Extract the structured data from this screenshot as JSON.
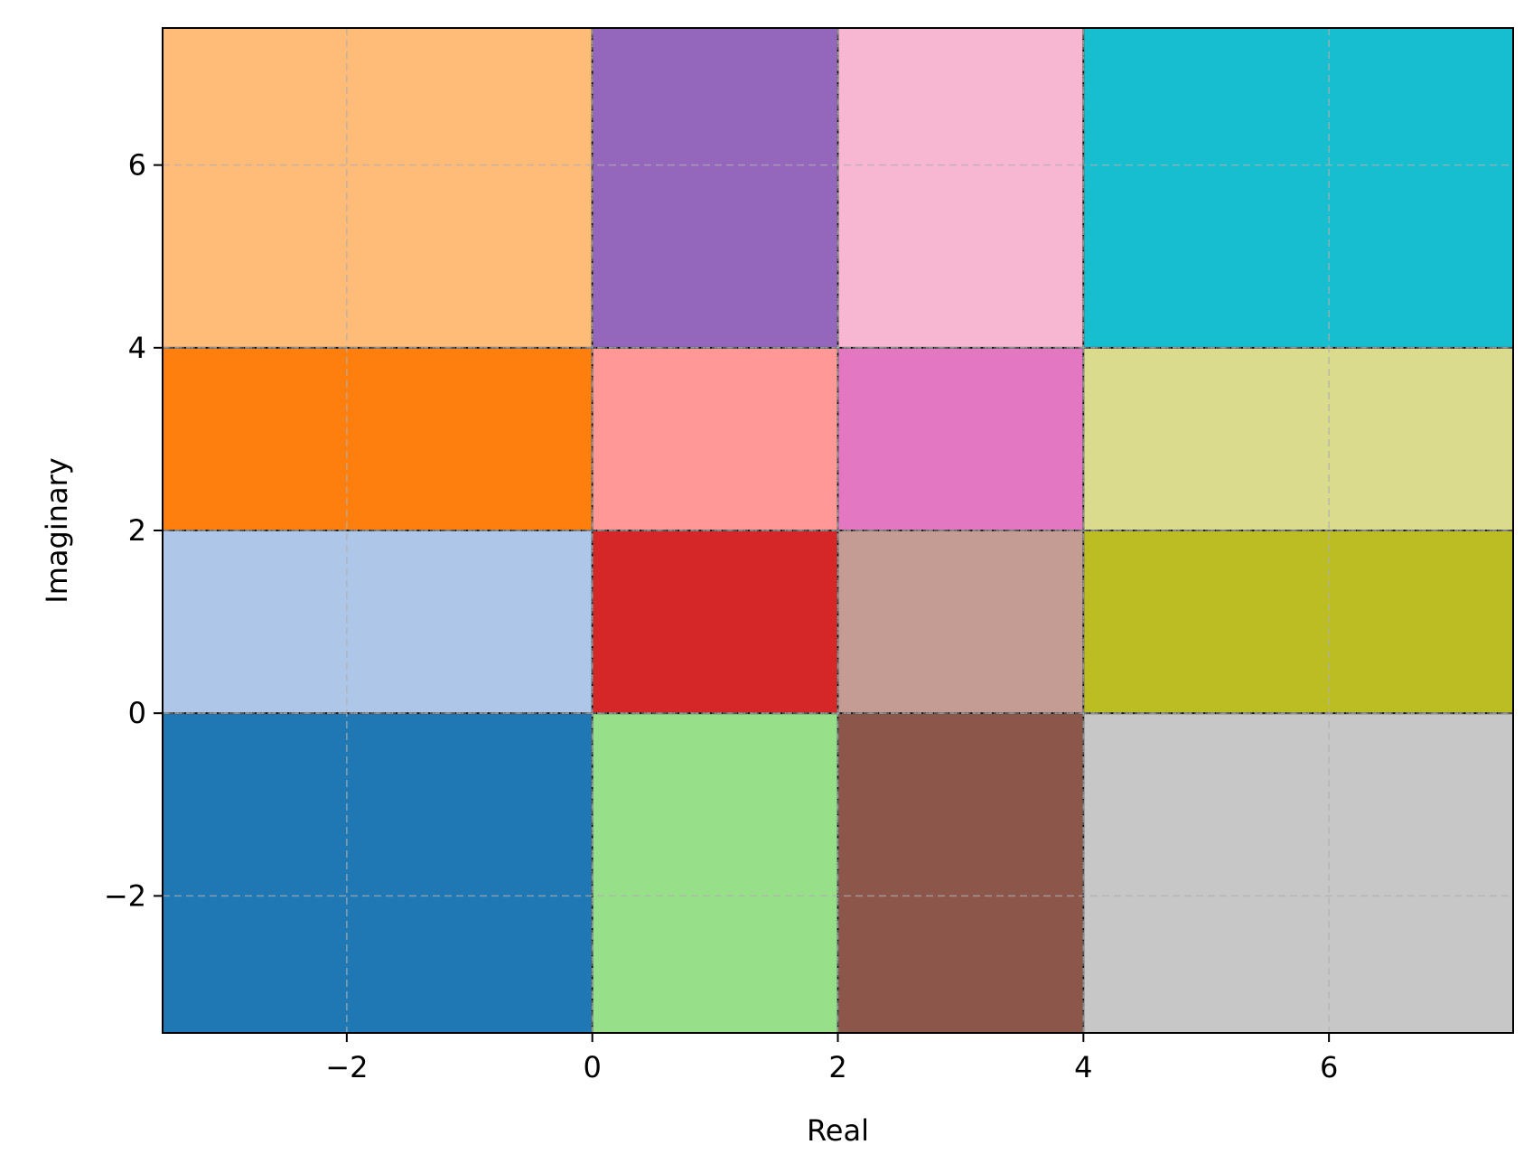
{
  "chart_data": {
    "type": "heatmap",
    "title": "",
    "xlabel": "Real",
    "ylabel": "Imaginary",
    "xlim": [
      -3.5,
      7.5
    ],
    "ylim": [
      -3.5,
      7.5
    ],
    "x_edges": [
      -3.5,
      0,
      2,
      4,
      7.5
    ],
    "y_edges": [
      -3.5,
      0,
      2,
      4,
      7.5
    ],
    "x_ticks": [
      -2,
      0,
      2,
      4,
      6
    ],
    "y_ticks": [
      -2,
      0,
      2,
      4,
      6
    ],
    "x_tick_labels": [
      "−2",
      "0",
      "2",
      "4",
      "6"
    ],
    "y_tick_labels": [
      "−2",
      "0",
      "2",
      "4",
      "6"
    ],
    "grid": true,
    "cells": [
      {
        "col": 0,
        "row": 0,
        "color": "#1f77b4"
      },
      {
        "col": 0,
        "row": 1,
        "color": "#aec7e8"
      },
      {
        "col": 0,
        "row": 2,
        "color": "#ff7f0e"
      },
      {
        "col": 0,
        "row": 3,
        "color": "#ffbb78"
      },
      {
        "col": 1,
        "row": 0,
        "color": "#98df8a"
      },
      {
        "col": 1,
        "row": 1,
        "color": "#d62728"
      },
      {
        "col": 1,
        "row": 2,
        "color": "#ff9896"
      },
      {
        "col": 1,
        "row": 3,
        "color": "#9467bd"
      },
      {
        "col": 2,
        "row": 0,
        "color": "#8c564b"
      },
      {
        "col": 2,
        "row": 1,
        "color": "#c49c94"
      },
      {
        "col": 2,
        "row": 2,
        "color": "#e377c2"
      },
      {
        "col": 2,
        "row": 3,
        "color": "#f7b6d2"
      },
      {
        "col": 3,
        "row": 0,
        "color": "#c7c7c7"
      },
      {
        "col": 3,
        "row": 1,
        "color": "#bcbd22"
      },
      {
        "col": 3,
        "row": 2,
        "color": "#dbdb8d"
      },
      {
        "col": 3,
        "row": 3,
        "color": "#17becf"
      }
    ]
  }
}
